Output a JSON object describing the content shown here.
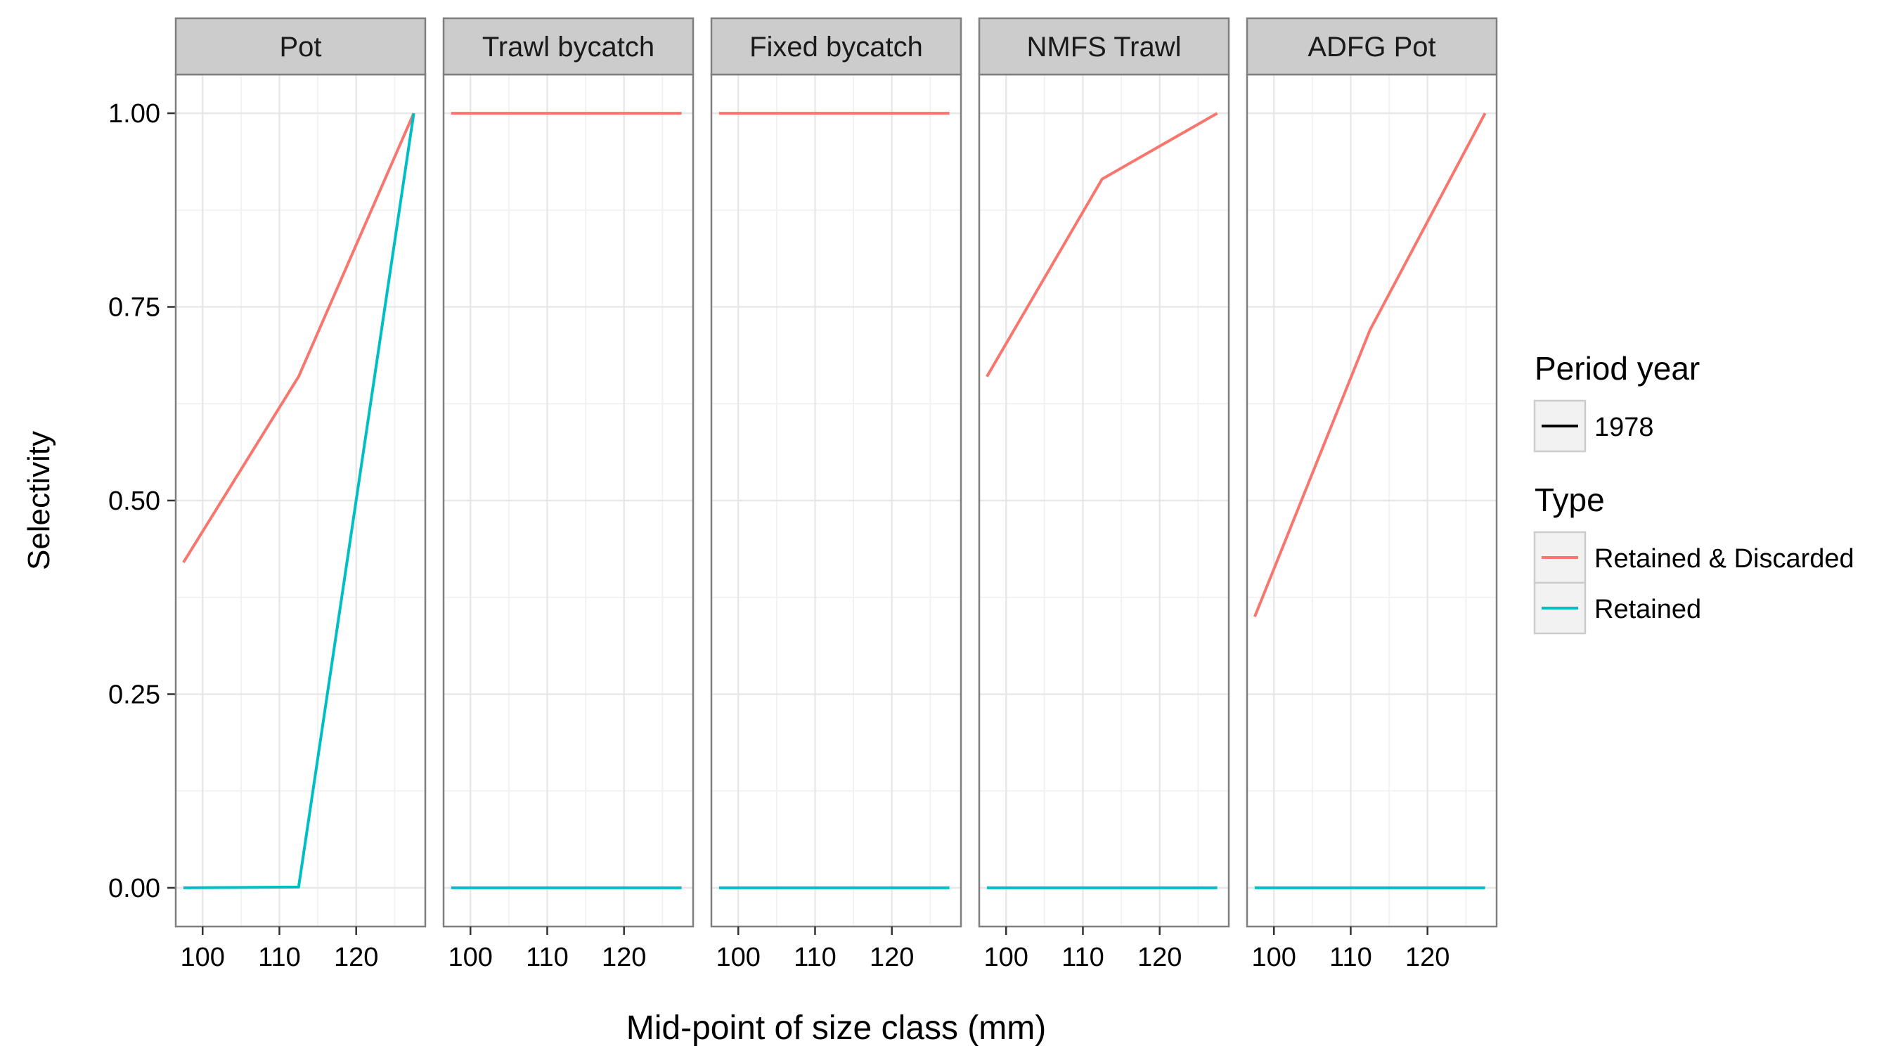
{
  "chart_data": {
    "type": "line",
    "title": "",
    "xlabel": "Mid-point of size class (mm)",
    "ylabel": "Selectivity",
    "xlim": [
      96.5,
      129
    ],
    "ylim": [
      -0.05,
      1.05
    ],
    "x_ticks": [
      100,
      110,
      120
    ],
    "y_ticks": [
      0,
      0.25,
      0.5,
      0.75,
      1
    ],
    "y_tick_labels": [
      "0.00",
      "0.25",
      "0.50",
      "0.75",
      "1.00"
    ],
    "grid": true,
    "facets": [
      {
        "label": "Pot",
        "series": [
          {
            "name": "Retained & Discarded",
            "x": [
              97.5,
              112.5,
              127.5
            ],
            "values": [
              0.42,
              0.66,
              1.0
            ]
          },
          {
            "name": "Retained",
            "x": [
              97.5,
              112.5,
              127.5
            ],
            "values": [
              0.0,
              0.001,
              1.0
            ]
          }
        ]
      },
      {
        "label": "Trawl bycatch",
        "series": [
          {
            "name": "Retained & Discarded",
            "x": [
              97.5,
              112.5,
              127.5
            ],
            "values": [
              1.0,
              1.0,
              1.0
            ]
          },
          {
            "name": "Retained",
            "x": [
              97.5,
              112.5,
              127.5
            ],
            "values": [
              0.0,
              0.0,
              0.0
            ]
          }
        ]
      },
      {
        "label": "Fixed bycatch",
        "series": [
          {
            "name": "Retained & Discarded",
            "x": [
              97.5,
              112.5,
              127.5
            ],
            "values": [
              1.0,
              1.0,
              1.0
            ]
          },
          {
            "name": "Retained",
            "x": [
              97.5,
              112.5,
              127.5
            ],
            "values": [
              0.0,
              0.0,
              0.0
            ]
          }
        ]
      },
      {
        "label": "NMFS Trawl",
        "series": [
          {
            "name": "Retained & Discarded",
            "x": [
              97.5,
              112.5,
              127.5
            ],
            "values": [
              0.66,
              0.915,
              1.0
            ]
          },
          {
            "name": "Retained",
            "x": [
              97.5,
              112.5,
              127.5
            ],
            "values": [
              0.0,
              0.0,
              0.0
            ]
          }
        ]
      },
      {
        "label": "ADFG Pot",
        "series": [
          {
            "name": "Retained & Discarded",
            "x": [
              97.5,
              112.5,
              127.5
            ],
            "values": [
              0.35,
              0.72,
              1.0
            ]
          },
          {
            "name": "Retained",
            "x": [
              97.5,
              112.5,
              127.5
            ],
            "values": [
              0.0,
              0.0,
              0.0
            ]
          }
        ]
      }
    ],
    "legend": {
      "placement": "right",
      "groups": [
        {
          "title": "Period year",
          "entries": [
            {
              "label": "1978",
              "color": "#000000"
            }
          ]
        },
        {
          "title": "Type",
          "entries": [
            {
              "label": "Retained & Discarded",
              "color": "#f8766d"
            },
            {
              "label": "Retained",
              "color": "#00bfc4"
            }
          ]
        }
      ]
    },
    "colors": {
      "Retained & Discarded": "#f8766d",
      "Retained": "#00bfc4"
    }
  }
}
